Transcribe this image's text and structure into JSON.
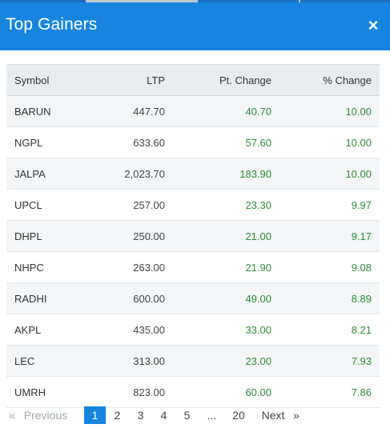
{
  "modal": {
    "title": "Top Gainers",
    "close_label": "×"
  },
  "table": {
    "headers": {
      "symbol": "Symbol",
      "ltp": "LTP",
      "pt_change": "Pt. Change",
      "pct_change": "% Change"
    },
    "rows": [
      {
        "symbol": "BARUN",
        "ltp": "447.70",
        "pt_change": "40.70",
        "pct_change": "10.00"
      },
      {
        "symbol": "NGPL",
        "ltp": "633.60",
        "pt_change": "57.60",
        "pct_change": "10.00"
      },
      {
        "symbol": "JALPA",
        "ltp": "2,023.70",
        "pt_change": "183.90",
        "pct_change": "10.00"
      },
      {
        "symbol": "UPCL",
        "ltp": "257.00",
        "pt_change": "23.30",
        "pct_change": "9.97"
      },
      {
        "symbol": "DHPL",
        "ltp": "250.00",
        "pt_change": "21.00",
        "pct_change": "9.17"
      },
      {
        "symbol": "NHPC",
        "ltp": "263.00",
        "pt_change": "21.90",
        "pct_change": "9.08"
      },
      {
        "symbol": "RADHI",
        "ltp": "600.00",
        "pt_change": "49.00",
        "pct_change": "8.89"
      },
      {
        "symbol": "AKPL",
        "ltp": "435.00",
        "pt_change": "33.00",
        "pct_change": "8.21"
      },
      {
        "symbol": "LEC",
        "ltp": "313.00",
        "pt_change": "23.00",
        "pct_change": "7.93"
      },
      {
        "symbol": "UMRH",
        "ltp": "823.00",
        "pt_change": "60.00",
        "pct_change": "7.86"
      }
    ]
  },
  "pagination": {
    "first": "«",
    "previous": "Previous",
    "pages": [
      "1",
      "2",
      "3",
      "4",
      "5"
    ],
    "ellipsis": "...",
    "last_page": "20",
    "next": "Next",
    "last": "»",
    "current": "1"
  },
  "colors": {
    "header_blue": "#1785e0",
    "positive_green": "#2e8b3a"
  }
}
